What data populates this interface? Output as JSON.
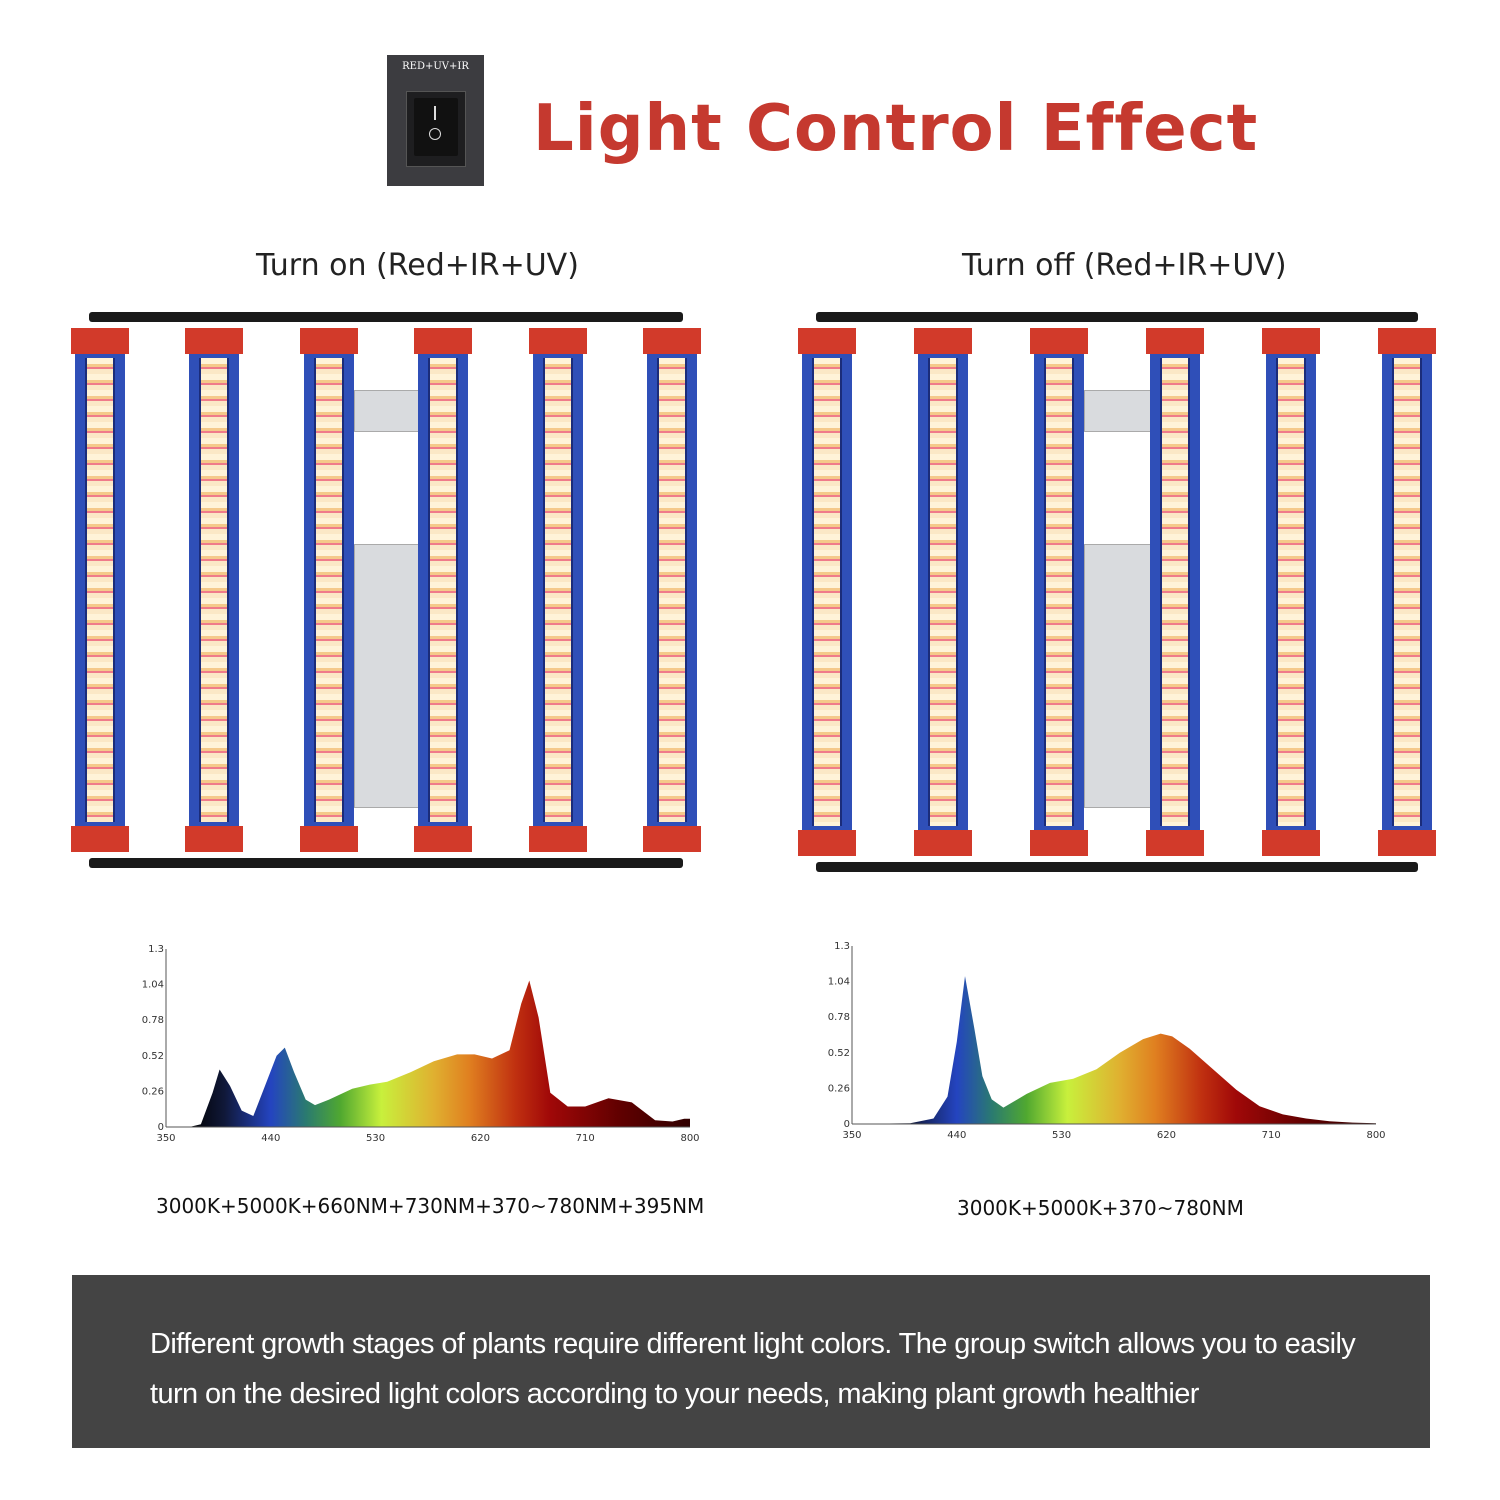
{
  "switch": {
    "label": "RED+UV+IR",
    "icon": "rocker-switch-icon"
  },
  "title": "Light Control Effect",
  "colors": {
    "title": "#c5392f",
    "bar_frame": "#2f4fb8",
    "bar_cap": "#d23a2a",
    "footer_bg": "#444444"
  },
  "left": {
    "subtitle": "Turn on (Red+IR+UV)",
    "spec": "3000K+5000K+660NM+730NM+370~780NM+395NM"
  },
  "right": {
    "subtitle": "Turn off (Red+IR+UV)",
    "spec": "3000K+5000K+370~780NM"
  },
  "footer": {
    "text": "Different growth stages of plants require different light colors. The group switch allows you to easily turn on the desired light colors according to your needs, making plant growth healthier"
  },
  "chart_data": [
    {
      "type": "area",
      "title": "",
      "xlabel": "",
      "ylabel": "",
      "xlim": [
        350,
        800
      ],
      "ylim": [
        0,
        1.3
      ],
      "xticks": [
        "350",
        "440",
        "530",
        "620",
        "710",
        "800"
      ],
      "yticks": [
        "0",
        "0.26",
        "0.52",
        "0.78",
        "1.04",
        "1.3"
      ],
      "x": [
        350,
        370,
        380,
        390,
        396,
        405,
        415,
        425,
        435,
        445,
        452,
        460,
        470,
        478,
        490,
        510,
        525,
        540,
        560,
        580,
        600,
        615,
        630,
        645,
        655,
        662,
        670,
        680,
        695,
        710,
        730,
        750,
        770,
        785,
        795,
        800
      ],
      "y": [
        0,
        0,
        0.02,
        0.25,
        0.42,
        0.3,
        0.12,
        0.08,
        0.3,
        0.52,
        0.58,
        0.4,
        0.2,
        0.16,
        0.2,
        0.28,
        0.31,
        0.33,
        0.4,
        0.48,
        0.53,
        0.53,
        0.5,
        0.56,
        0.9,
        1.07,
        0.8,
        0.25,
        0.15,
        0.15,
        0.21,
        0.18,
        0.05,
        0.04,
        0.06,
        0.06
      ]
    },
    {
      "type": "area",
      "title": "",
      "xlabel": "",
      "ylabel": "",
      "xlim": [
        350,
        800
      ],
      "ylim": [
        0,
        1.3
      ],
      "xticks": [
        "350",
        "440",
        "530",
        "620",
        "710",
        "800"
      ],
      "yticks": [
        "0",
        "0.26",
        "0.52",
        "0.78",
        "1.04",
        "1.3"
      ],
      "x": [
        350,
        400,
        420,
        432,
        440,
        447,
        455,
        462,
        470,
        480,
        500,
        520,
        540,
        560,
        580,
        600,
        615,
        625,
        640,
        660,
        680,
        700,
        720,
        740,
        760,
        780,
        800
      ],
      "y": [
        0,
        0.005,
        0.04,
        0.2,
        0.6,
        1.08,
        0.7,
        0.35,
        0.18,
        0.12,
        0.22,
        0.3,
        0.33,
        0.4,
        0.52,
        0.62,
        0.66,
        0.64,
        0.55,
        0.4,
        0.25,
        0.13,
        0.07,
        0.04,
        0.02,
        0.01,
        0.005
      ]
    }
  ]
}
